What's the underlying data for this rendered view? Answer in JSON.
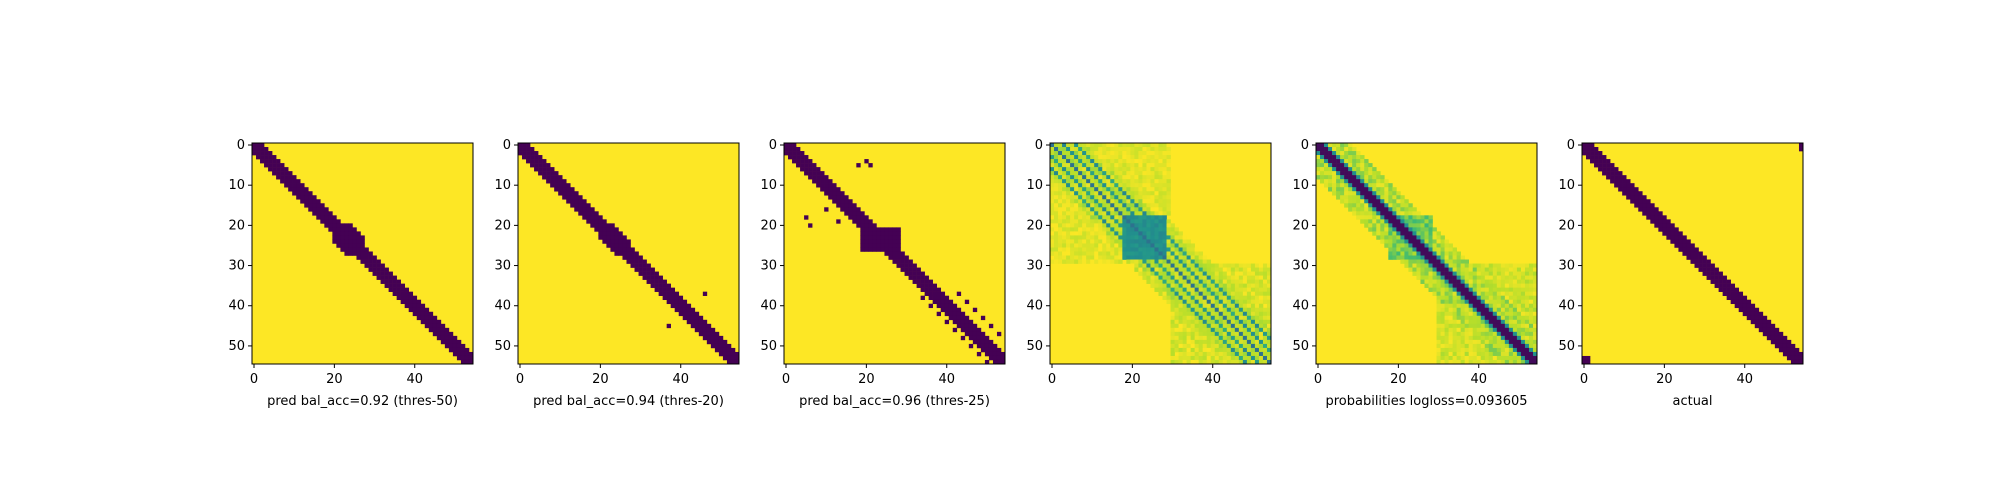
{
  "chart_data": [
    {
      "type": "heatmap",
      "title": "",
      "xlabel": "pred bal_acc=0.92 (thres-50)",
      "ylabel": "",
      "size": 55,
      "xticks": [
        0,
        20,
        40
      ],
      "yticks": [
        0,
        10,
        20,
        30,
        40,
        50
      ],
      "colormap": [
        "#440154",
        "#fde725"
      ],
      "description": "binary prediction; dark band of width ~4 along main diagonal, thicker block around 20-28"
    },
    {
      "type": "heatmap",
      "title": "",
      "xlabel": "pred bal_acc=0.94 (thres-20)",
      "ylabel": "",
      "size": 55,
      "xticks": [
        0,
        20,
        40
      ],
      "yticks": [
        0,
        10,
        20,
        30,
        40,
        50
      ],
      "colormap": [
        "#440154",
        "#fde725"
      ],
      "description": "binary prediction; dark diagonal band with two isolated points near (37,46) and (46,37)"
    },
    {
      "type": "heatmap",
      "title": "",
      "xlabel": "pred bal_acc=0.96 (thres-25)",
      "ylabel": "",
      "size": 55,
      "xticks": [
        0,
        20,
        40
      ],
      "yticks": [
        0,
        10,
        20,
        30,
        40,
        50
      ],
      "colormap": [
        "#440154",
        "#fde725"
      ],
      "description": "binary prediction; diagonal band, block around 20-28, off-diagonal lines"
    },
    {
      "type": "heatmap",
      "title": "",
      "xlabel": "",
      "ylabel": "",
      "size": 55,
      "xticks": [
        0,
        20,
        40
      ],
      "yticks": [
        0,
        10,
        20,
        30,
        40,
        50
      ],
      "colormap": [
        "#440154",
        "#31688e",
        "#21908d",
        "#35b779",
        "#b5de2b",
        "#fde725"
      ],
      "description": "continuous probabilities; structure around diagonal and 20-28 block"
    },
    {
      "type": "heatmap",
      "title": "",
      "xlabel": "probabilities logloss=0.093605",
      "ylabel": "",
      "size": 55,
      "xticks": [
        0,
        20,
        40
      ],
      "yticks": [
        0,
        10,
        20,
        30,
        40,
        50
      ],
      "colormap": [
        "#440154",
        "#31688e",
        "#21908d",
        "#35b779",
        "#b5de2b",
        "#fde725"
      ],
      "description": "continuous probabilities; strong dark main diagonal"
    },
    {
      "type": "heatmap",
      "title": "",
      "xlabel": "actual",
      "ylabel": "",
      "size": 55,
      "xticks": [
        0,
        20,
        40
      ],
      "yticks": [
        0,
        10,
        20,
        30,
        40,
        50
      ],
      "colormap": [
        "#440154",
        "#fde725"
      ],
      "description": "ground truth; dark diagonal band of width ~4 plus small corner blocks"
    }
  ]
}
